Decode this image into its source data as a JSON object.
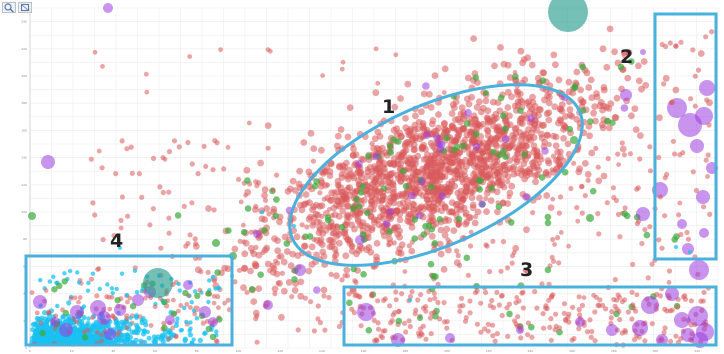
{
  "toolbar": {
    "zoom_icon": "magnifier-icon",
    "reset_icon": "reset-zoom-icon"
  },
  "chart_data": {
    "type": "scatter",
    "title": "",
    "xlabel": "",
    "ylabel": "",
    "xlim": [
      0,
      330
    ],
    "ylim": [
      0,
      250
    ],
    "grid": true,
    "x_ticks": [
      "0",
      "20",
      "40",
      "60",
      "80",
      "100",
      "120",
      "140",
      "160",
      "180",
      "200",
      "220",
      "240",
      "260",
      "280",
      "300",
      "320"
    ],
    "y_ticks": [
      "0",
      "20",
      "40",
      "60",
      "80",
      "100",
      "120",
      "140",
      "160",
      "180",
      "200",
      "220",
      "240"
    ],
    "series": [
      {
        "color": "#d9595b",
        "opacity": 0.55
      },
      {
        "color": "#3aa83a",
        "opacity": 0.7
      },
      {
        "color": "#9a3ce0",
        "opacity": 0.55
      },
      {
        "color": "#19c1f0",
        "opacity": 0.75
      },
      {
        "color": "#2a9d8f",
        "opacity": 0.65
      }
    ],
    "annotations": [
      {
        "label": "1",
        "shape": "ellipse",
        "color": "#4ab0dc"
      },
      {
        "label": "2",
        "shape": "rectangle",
        "color": "#4ab0dc"
      },
      {
        "label": "3",
        "shape": "rectangle",
        "color": "#4ab0dc"
      },
      {
        "label": "4",
        "shape": "rectangle",
        "color": "#4ab0dc"
      }
    ]
  }
}
